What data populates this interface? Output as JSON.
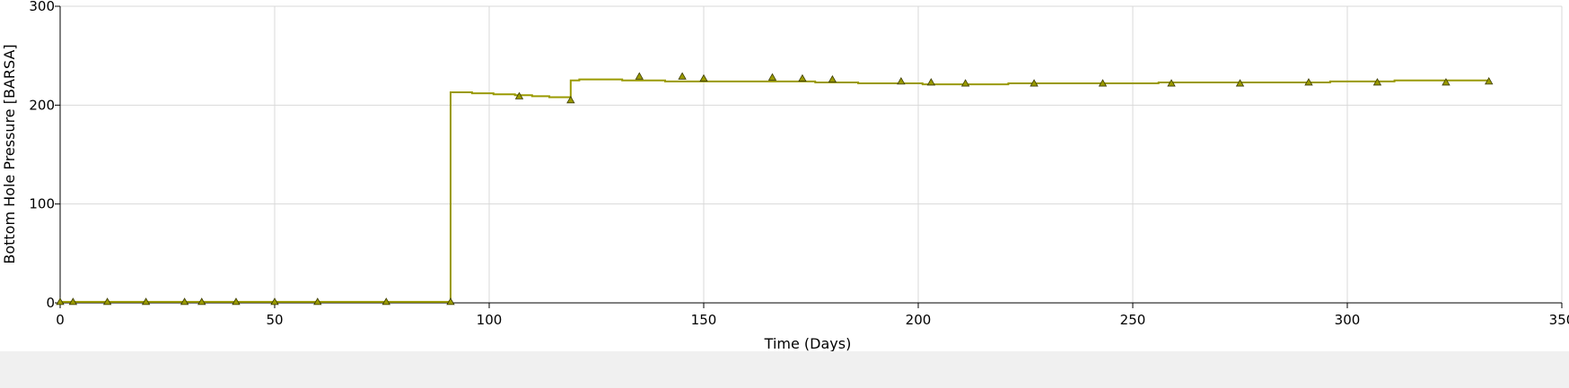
{
  "chart_data": {
    "type": "line",
    "title": "",
    "xlabel": "Time (Days)",
    "ylabel": "Bottom Hole Pressure [BARSA]",
    "xlim": [
      0,
      350
    ],
    "ylim": [
      0,
      300
    ],
    "x_ticks": [
      0,
      50,
      100,
      150,
      200,
      250,
      300,
      350
    ],
    "y_ticks": [
      0,
      100,
      200,
      300
    ],
    "grid": true,
    "legend": "none",
    "series": [
      {
        "line_style": "step",
        "color": "#9a9a00",
        "x": [
          0,
          91,
          91,
          96,
          101,
          106,
          110,
          114,
          119,
          119,
          121,
          126,
          131,
          141,
          166,
          176,
          186,
          201,
          221,
          236,
          251,
          256,
          276,
          296,
          311,
          333
        ],
        "y": [
          1,
          1,
          213,
          212,
          211,
          210,
          209,
          208,
          207,
          225,
          226,
          226,
          225,
          224,
          224,
          223,
          222,
          221,
          222,
          222,
          222,
          223,
          223,
          224,
          225,
          225
        ]
      },
      {
        "marker": "triangle",
        "color": "#9a9a00",
        "x": [
          0,
          3,
          11,
          20,
          29,
          33,
          41,
          50,
          60,
          76,
          91,
          107,
          119,
          135,
          145,
          150,
          166,
          173,
          180,
          196,
          203,
          211,
          227,
          243,
          259,
          275,
          291,
          307,
          323,
          333
        ],
        "y": [
          1,
          1,
          1,
          1,
          1,
          1,
          1,
          1,
          1,
          1,
          1,
          209,
          205,
          229,
          229,
          227,
          228,
          227,
          226,
          224,
          223,
          222,
          222,
          222,
          222,
          222,
          223,
          223,
          223,
          224
        ]
      }
    ]
  }
}
